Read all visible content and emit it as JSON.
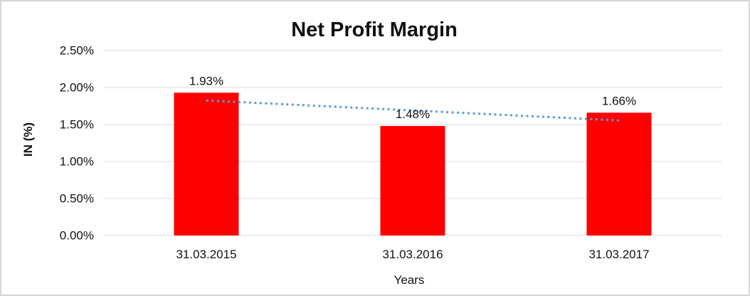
{
  "chart_data": {
    "type": "bar",
    "title": "Net Profit Margin",
    "xlabel": "Years",
    "ylabel": "IN (%)",
    "categories": [
      "31.03.2015",
      "31.03.2016",
      "31.03.2017"
    ],
    "values": [
      1.93,
      1.48,
      1.66
    ],
    "data_labels": [
      "1.93%",
      "1.48%",
      "1.66%"
    ],
    "ylim": [
      0,
      2.5
    ],
    "ytick_step": 0.5,
    "ytick_labels": [
      "0.00%",
      "0.50%",
      "1.00%",
      "1.50%",
      "2.00%",
      "2.50%"
    ],
    "grid": true,
    "legend": "none",
    "bar_color": "#ff0000",
    "gridline_color": "#d9d9d9",
    "trendline": {
      "type": "linear",
      "style": "dotted",
      "color": "#5b9bd5"
    }
  }
}
